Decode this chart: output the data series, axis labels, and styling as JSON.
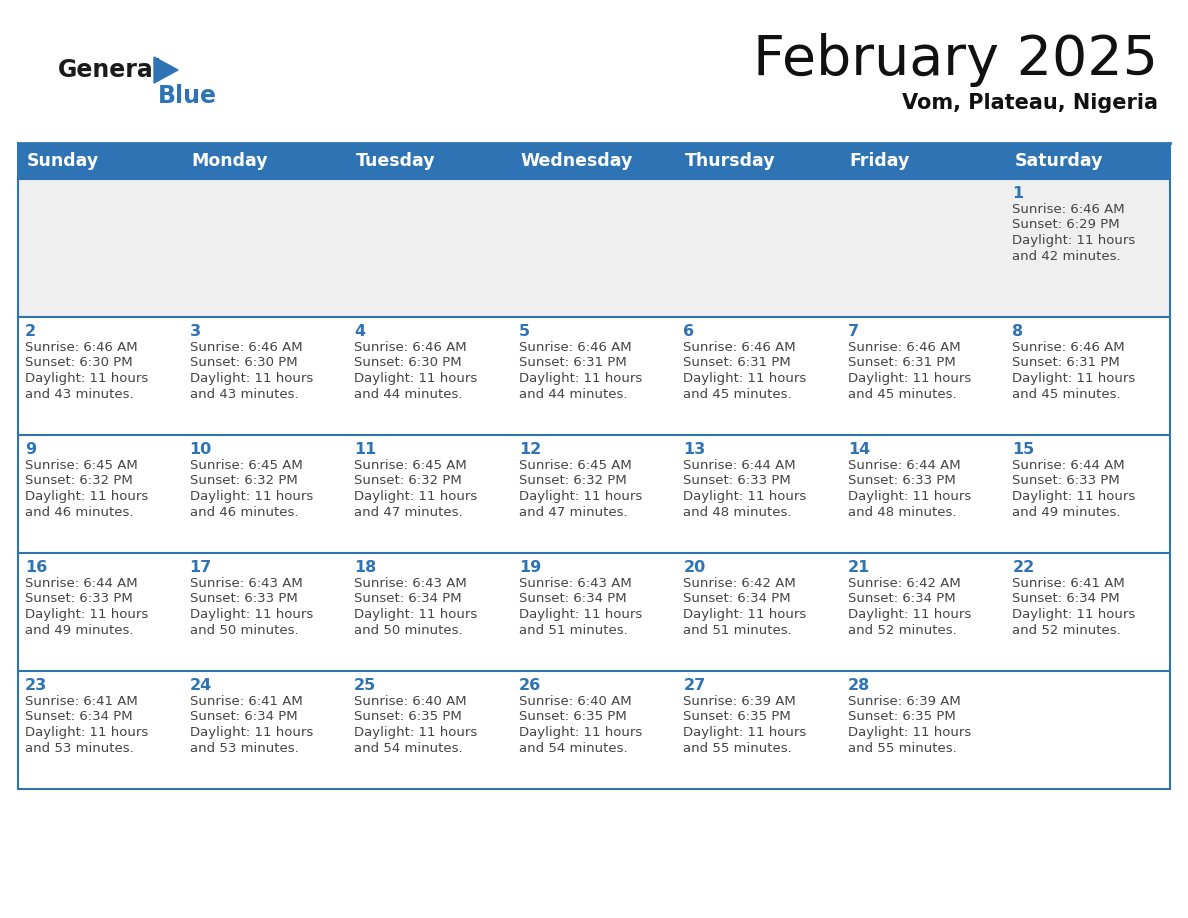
{
  "title": "February 2025",
  "subtitle": "Vom, Plateau, Nigeria",
  "header_color": "#2E74B5",
  "header_text_color": "#FFFFFF",
  "weekdays": [
    "Sunday",
    "Monday",
    "Tuesday",
    "Wednesday",
    "Thursday",
    "Friday",
    "Saturday"
  ],
  "background_color": "#FFFFFF",
  "cell_bg_week1": "#EFEFEF",
  "cell_bg_normal": "#FFFFFF",
  "line_color": "#2E74B5",
  "day_color": "#2E74B5",
  "text_color": "#444444",
  "logo_general_color": "#1A1A1A",
  "logo_blue_color": "#2E74B5",
  "days": [
    {
      "day": 1,
      "col": 6,
      "row": 0,
      "sunrise": "6:46 AM",
      "sunset": "6:29 PM",
      "daylight": "11 hours and 42 minutes."
    },
    {
      "day": 2,
      "col": 0,
      "row": 1,
      "sunrise": "6:46 AM",
      "sunset": "6:30 PM",
      "daylight": "11 hours and 43 minutes."
    },
    {
      "day": 3,
      "col": 1,
      "row": 1,
      "sunrise": "6:46 AM",
      "sunset": "6:30 PM",
      "daylight": "11 hours and 43 minutes."
    },
    {
      "day": 4,
      "col": 2,
      "row": 1,
      "sunrise": "6:46 AM",
      "sunset": "6:30 PM",
      "daylight": "11 hours and 44 minutes."
    },
    {
      "day": 5,
      "col": 3,
      "row": 1,
      "sunrise": "6:46 AM",
      "sunset": "6:31 PM",
      "daylight": "11 hours and 44 minutes."
    },
    {
      "day": 6,
      "col": 4,
      "row": 1,
      "sunrise": "6:46 AM",
      "sunset": "6:31 PM",
      "daylight": "11 hours and 45 minutes."
    },
    {
      "day": 7,
      "col": 5,
      "row": 1,
      "sunrise": "6:46 AM",
      "sunset": "6:31 PM",
      "daylight": "11 hours and 45 minutes."
    },
    {
      "day": 8,
      "col": 6,
      "row": 1,
      "sunrise": "6:46 AM",
      "sunset": "6:31 PM",
      "daylight": "11 hours and 45 minutes."
    },
    {
      "day": 9,
      "col": 0,
      "row": 2,
      "sunrise": "6:45 AM",
      "sunset": "6:32 PM",
      "daylight": "11 hours and 46 minutes."
    },
    {
      "day": 10,
      "col": 1,
      "row": 2,
      "sunrise": "6:45 AM",
      "sunset": "6:32 PM",
      "daylight": "11 hours and 46 minutes."
    },
    {
      "day": 11,
      "col": 2,
      "row": 2,
      "sunrise": "6:45 AM",
      "sunset": "6:32 PM",
      "daylight": "11 hours and 47 minutes."
    },
    {
      "day": 12,
      "col": 3,
      "row": 2,
      "sunrise": "6:45 AM",
      "sunset": "6:32 PM",
      "daylight": "11 hours and 47 minutes."
    },
    {
      "day": 13,
      "col": 4,
      "row": 2,
      "sunrise": "6:44 AM",
      "sunset": "6:33 PM",
      "daylight": "11 hours and 48 minutes."
    },
    {
      "day": 14,
      "col": 5,
      "row": 2,
      "sunrise": "6:44 AM",
      "sunset": "6:33 PM",
      "daylight": "11 hours and 48 minutes."
    },
    {
      "day": 15,
      "col": 6,
      "row": 2,
      "sunrise": "6:44 AM",
      "sunset": "6:33 PM",
      "daylight": "11 hours and 49 minutes."
    },
    {
      "day": 16,
      "col": 0,
      "row": 3,
      "sunrise": "6:44 AM",
      "sunset": "6:33 PM",
      "daylight": "11 hours and 49 minutes."
    },
    {
      "day": 17,
      "col": 1,
      "row": 3,
      "sunrise": "6:43 AM",
      "sunset": "6:33 PM",
      "daylight": "11 hours and 50 minutes."
    },
    {
      "day": 18,
      "col": 2,
      "row": 3,
      "sunrise": "6:43 AM",
      "sunset": "6:34 PM",
      "daylight": "11 hours and 50 minutes."
    },
    {
      "day": 19,
      "col": 3,
      "row": 3,
      "sunrise": "6:43 AM",
      "sunset": "6:34 PM",
      "daylight": "11 hours and 51 minutes."
    },
    {
      "day": 20,
      "col": 4,
      "row": 3,
      "sunrise": "6:42 AM",
      "sunset": "6:34 PM",
      "daylight": "11 hours and 51 minutes."
    },
    {
      "day": 21,
      "col": 5,
      "row": 3,
      "sunrise": "6:42 AM",
      "sunset": "6:34 PM",
      "daylight": "11 hours and 52 minutes."
    },
    {
      "day": 22,
      "col": 6,
      "row": 3,
      "sunrise": "6:41 AM",
      "sunset": "6:34 PM",
      "daylight": "11 hours and 52 minutes."
    },
    {
      "day": 23,
      "col": 0,
      "row": 4,
      "sunrise": "6:41 AM",
      "sunset": "6:34 PM",
      "daylight": "11 hours and 53 minutes."
    },
    {
      "day": 24,
      "col": 1,
      "row": 4,
      "sunrise": "6:41 AM",
      "sunset": "6:34 PM",
      "daylight": "11 hours and 53 minutes."
    },
    {
      "day": 25,
      "col": 2,
      "row": 4,
      "sunrise": "6:40 AM",
      "sunset": "6:35 PM",
      "daylight": "11 hours and 54 minutes."
    },
    {
      "day": 26,
      "col": 3,
      "row": 4,
      "sunrise": "6:40 AM",
      "sunset": "6:35 PM",
      "daylight": "11 hours and 54 minutes."
    },
    {
      "day": 27,
      "col": 4,
      "row": 4,
      "sunrise": "6:39 AM",
      "sunset": "6:35 PM",
      "daylight": "11 hours and 55 minutes."
    },
    {
      "day": 28,
      "col": 5,
      "row": 4,
      "sunrise": "6:39 AM",
      "sunset": "6:35 PM",
      "daylight": "11 hours and 55 minutes."
    }
  ]
}
